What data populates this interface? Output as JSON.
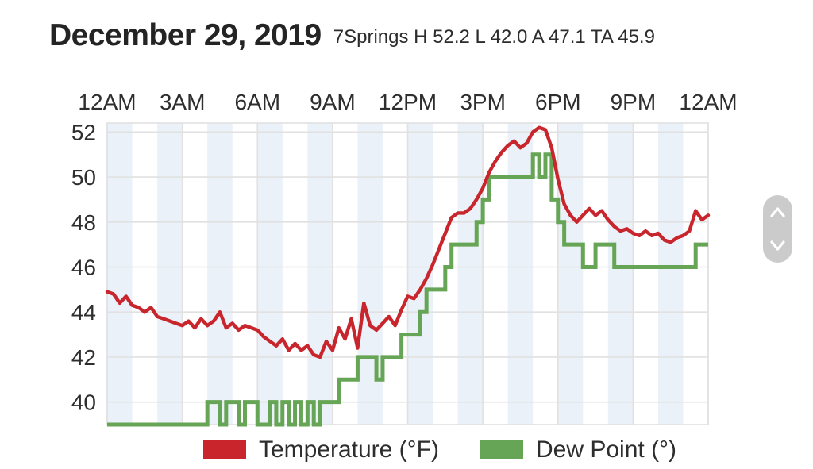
{
  "header": {
    "title": "December 29, 2019",
    "stats_text": "7Springs H 52.2 L 42.0 A 47.1 TA 45.9",
    "station": "7Springs",
    "high_label": "H",
    "high": "52.2",
    "low_label": "L",
    "low": "42.0",
    "average_label": "A",
    "average": "47.1",
    "ta_label": "TA",
    "ta": "45.9"
  },
  "chart_data": {
    "type": "line",
    "title": "",
    "xlabel": "",
    "ylabel": "",
    "xlim": [
      0,
      24
    ],
    "ylim": [
      39,
      52.4
    ],
    "grid": true,
    "band_color": "#ebf1f8",
    "gridline_color": "#e1e1e1",
    "axis_text_color": "#2e2e2e",
    "legend_position": "bottom",
    "x_ticks": [
      {
        "hour": 0,
        "label": "12AM"
      },
      {
        "hour": 3,
        "label": "3AM"
      },
      {
        "hour": 6,
        "label": "6AM"
      },
      {
        "hour": 9,
        "label": "9AM"
      },
      {
        "hour": 12,
        "label": "12PM"
      },
      {
        "hour": 15,
        "label": "3PM"
      },
      {
        "hour": 18,
        "label": "6PM"
      },
      {
        "hour": 21,
        "label": "9PM"
      },
      {
        "hour": 24,
        "label": "12AM"
      }
    ],
    "y_ticks": [
      52,
      50,
      48,
      46,
      44,
      42,
      40
    ],
    "x_hours": [
      0,
      0.25,
      0.5,
      0.75,
      1,
      1.25,
      1.5,
      1.75,
      2,
      2.25,
      2.5,
      2.75,
      3,
      3.25,
      3.5,
      3.75,
      4,
      4.25,
      4.5,
      4.75,
      5,
      5.25,
      5.5,
      5.75,
      6,
      6.25,
      6.5,
      6.75,
      7,
      7.25,
      7.5,
      7.75,
      8,
      8.25,
      8.5,
      8.75,
      9,
      9.25,
      9.5,
      9.75,
      10,
      10.25,
      10.5,
      10.75,
      11,
      11.25,
      11.5,
      11.75,
      12,
      12.25,
      12.5,
      12.75,
      13,
      13.25,
      13.5,
      13.75,
      14,
      14.25,
      14.5,
      14.75,
      15,
      15.25,
      15.5,
      15.75,
      16,
      16.25,
      16.5,
      16.75,
      17,
      17.25,
      17.5,
      17.75,
      18,
      18.25,
      18.5,
      18.75,
      19,
      19.25,
      19.5,
      19.75,
      20,
      20.25,
      20.5,
      20.75,
      21,
      21.25,
      21.5,
      21.75,
      22,
      22.25,
      22.5,
      22.75,
      23,
      23.25,
      23.5,
      23.75,
      24
    ],
    "series": [
      {
        "name": "Temperature (°F)",
        "color": "#c8252c",
        "line_style": "line",
        "values": [
          44.9,
          44.8,
          44.4,
          44.7,
          44.3,
          44.2,
          44.0,
          44.2,
          43.8,
          43.7,
          43.6,
          43.5,
          43.4,
          43.6,
          43.3,
          43.7,
          43.4,
          43.6,
          44.0,
          43.3,
          43.5,
          43.2,
          43.4,
          43.3,
          43.2,
          42.9,
          42.7,
          42.5,
          42.8,
          42.3,
          42.6,
          42.3,
          42.5,
          42.1,
          42.0,
          42.7,
          42.3,
          43.3,
          42.8,
          43.7,
          42.4,
          44.4,
          43.4,
          43.2,
          43.5,
          43.8,
          43.4,
          44.1,
          44.7,
          44.6,
          45.0,
          45.5,
          46.1,
          46.8,
          47.5,
          48.2,
          48.4,
          48.4,
          48.6,
          49.0,
          49.5,
          50.2,
          50.7,
          51.1,
          51.4,
          51.6,
          51.3,
          51.5,
          52.0,
          52.2,
          52.1,
          51.3,
          49.9,
          48.8,
          48.3,
          48.0,
          48.3,
          48.6,
          48.3,
          48.5,
          48.1,
          47.8,
          47.6,
          47.7,
          47.5,
          47.4,
          47.6,
          47.4,
          47.5,
          47.2,
          47.1,
          47.3,
          47.4,
          47.6,
          48.5,
          48.1,
          48.3
        ]
      },
      {
        "name": "Dew Point (°)",
        "color": "#66a555",
        "line_style": "step",
        "values": [
          39,
          39,
          39,
          39,
          39,
          39,
          39,
          39,
          39,
          39,
          39,
          39,
          39,
          39,
          39,
          39,
          40,
          40,
          39,
          40,
          40,
          39,
          40,
          40,
          39,
          39,
          40,
          39,
          40,
          39,
          40,
          39,
          40,
          39,
          40,
          40,
          40,
          41,
          41,
          41,
          42,
          42,
          42,
          41,
          42,
          42,
          42,
          43,
          43,
          43,
          44,
          45,
          45,
          45,
          46,
          47,
          47,
          47,
          47,
          48,
          49,
          50,
          50,
          50,
          50,
          50,
          50,
          50,
          51,
          50,
          51,
          49,
          48,
          47,
          47,
          47,
          46,
          46,
          47,
          47,
          47,
          46,
          46,
          46,
          46,
          46,
          46,
          46,
          46,
          46,
          46,
          46,
          46,
          46,
          47,
          47,
          47
        ]
      }
    ]
  },
  "legend": {
    "items": [
      {
        "label": "Temperature (°F)",
        "color": "#c8252c"
      },
      {
        "label": "Dew Point (°)",
        "color": "#66a555"
      }
    ]
  },
  "scroll_widget": {
    "up_icon": "chevron-up",
    "down_icon": "chevron-down"
  }
}
